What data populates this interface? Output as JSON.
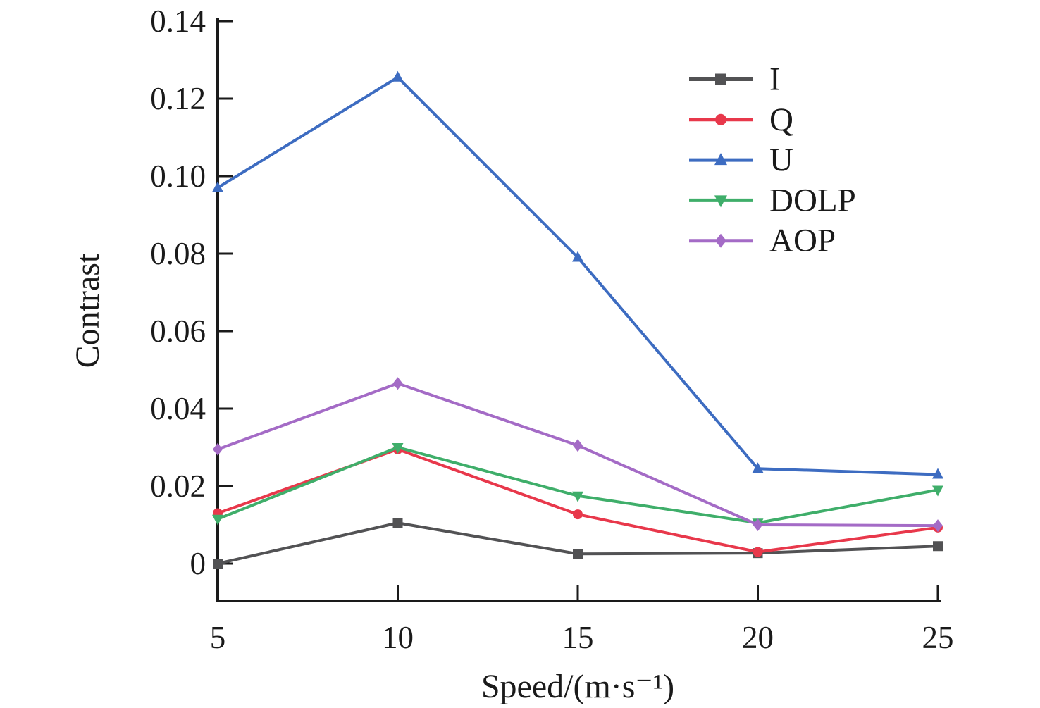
{
  "chart_data": {
    "type": "line",
    "title": "",
    "xlabel": "Speed/(m·s⁻¹)",
    "ylabel": "Contrast",
    "x": [
      5,
      10,
      15,
      20,
      25
    ],
    "xlim": [
      5,
      25
    ],
    "ylim": [
      -0.01,
      0.14
    ],
    "grid": false,
    "legend_position": "upper-right",
    "legend_frame": false,
    "x_ticks": {
      "values": [
        5,
        10,
        15,
        20,
        25
      ],
      "labels": [
        "5",
        "10",
        "15",
        "20",
        "25"
      ]
    },
    "y_ticks": {
      "values": [
        0,
        0.02,
        0.04,
        0.06,
        0.08,
        0.1,
        0.12,
        0.14
      ],
      "labels": [
        "0",
        "0.02",
        "0.04",
        "0.06",
        "0.08",
        "0.10",
        "0.12",
        "0.14"
      ]
    },
    "axis_color": "#1a1a1a",
    "text_color": "#1a1a1a",
    "series": [
      {
        "name": "I",
        "color": "#525254",
        "marker": "square",
        "values": [
          0.0,
          0.0105,
          0.0025,
          0.0027,
          0.0045
        ]
      },
      {
        "name": "Q",
        "color": "#e8384b",
        "marker": "circle",
        "values": [
          0.013,
          0.0295,
          0.0127,
          0.003,
          0.0093
        ]
      },
      {
        "name": "U",
        "color": "#3d6cc1",
        "marker": "triangle-up",
        "values": [
          0.097,
          0.1255,
          0.079,
          0.0245,
          0.023
        ]
      },
      {
        "name": "DOLP",
        "color": "#3fae6a",
        "marker": "triangle-down",
        "values": [
          0.0115,
          0.03,
          0.0175,
          0.0105,
          0.019
        ]
      },
      {
        "name": "AOP",
        "color": "#a46bc6",
        "marker": "diamond",
        "values": [
          0.0295,
          0.0465,
          0.0305,
          0.01,
          0.0098
        ]
      }
    ]
  }
}
